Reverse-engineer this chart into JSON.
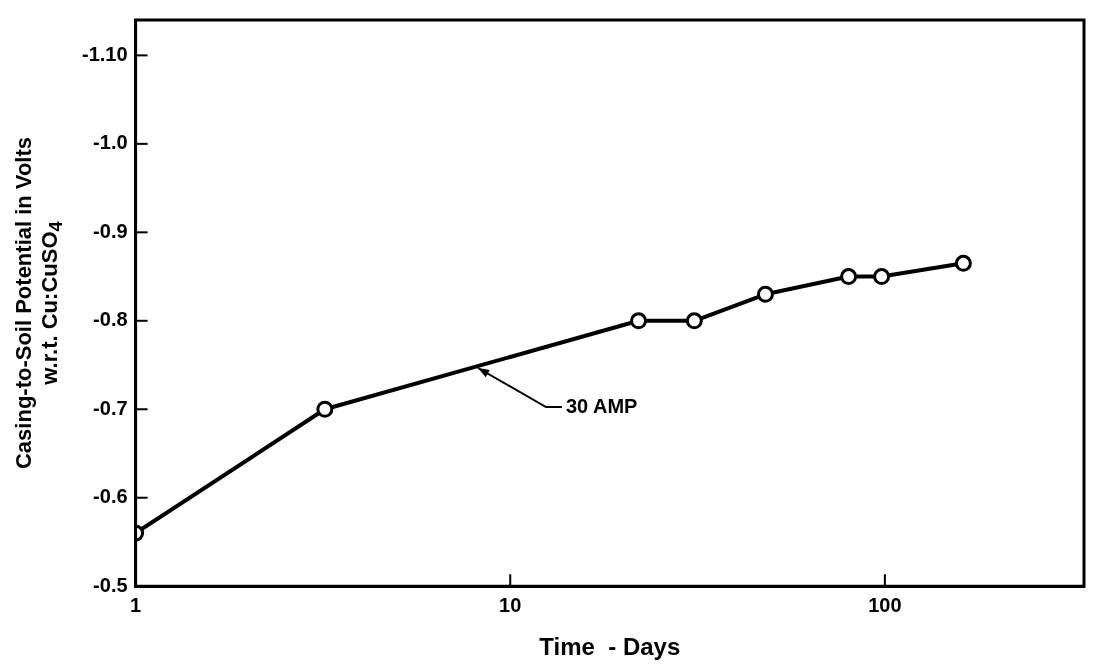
{
  "chart_data": {
    "type": "line",
    "xlabel": "Time  - Days",
    "ylabel": "Casing-to-Soil Potential in Volts\nw.r.t. Cu:CuSO$_{4}$",
    "x": [
      1,
      3.2,
      22,
      31,
      48,
      80,
      98,
      162
    ],
    "series": [
      {
        "color": "#000000",
        "values": [
          -0.56,
          -0.7,
          -0.8,
          -0.8,
          -0.83,
          -0.85,
          -0.85,
          -0.865
        ]
      }
    ],
    "log": "x",
    "xlim": [
      1,
      340
    ],
    "xticks": [
      1,
      10,
      100
    ],
    "ylim": [
      -0.5,
      -1.14
    ],
    "yticks": [
      -0.5,
      -0.6,
      -0.7,
      -0.8,
      -0.9,
      {
        "value": -1.0,
        "label": "-1.0"
      },
      {
        "value": -1.1,
        "label": "-1.10"
      }
    ],
    "grid": false,
    "legend": false,
    "marker": "circle",
    "line_style": "solid",
    "annotations": [
      {
        "text": "30 AMP",
        "x": 8,
        "y": -0.75
      }
    ]
  }
}
